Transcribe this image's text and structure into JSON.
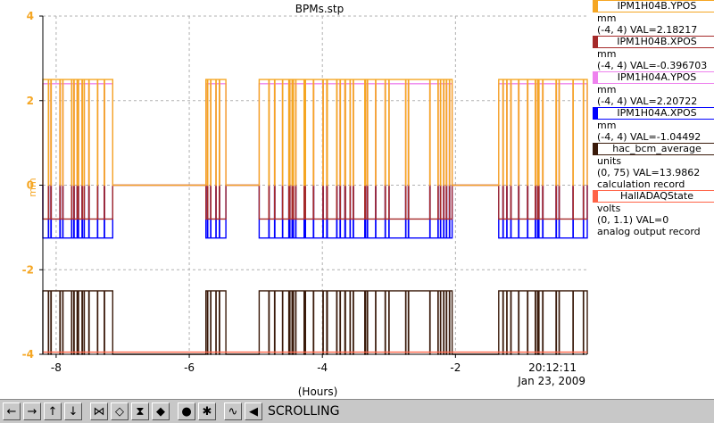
{
  "chart_data": {
    "type": "line",
    "title": "BPMs.stp",
    "xlabel": "(Hours)",
    "ylabel": "mm",
    "xlim": [
      -8.2,
      -0.02
    ],
    "ylim": [
      -4,
      4
    ],
    "x_ticks": [
      -8,
      -6,
      -4,
      -2
    ],
    "x_tick_labels": [
      "-8",
      "-6",
      "-4",
      "-2"
    ],
    "y_ticks": [
      -4,
      -2,
      0,
      2,
      4
    ],
    "y_tick_labels": [
      "-4",
      "-2",
      "0",
      "2",
      "4"
    ],
    "time_label": "20:12:11",
    "date_label": "Jan 23, 2009",
    "grid": true,
    "legend_position": "right",
    "beam_on_intervals": [
      [
        -8.2,
        -7.15
      ],
      [
        -5.75,
        -5.45
      ],
      [
        -4.95,
        -2.05
      ],
      [
        -1.35,
        -0.02
      ]
    ],
    "series": [
      {
        "name": "IPM1H04B.YPOS",
        "color": "#f5a623",
        "units": "mm",
        "range": "(-4, 4)",
        "val": "VAL=2.18217",
        "on_value": 2.5,
        "off_value": 0.0
      },
      {
        "name": "IPM1H04B.XPOS",
        "color": "#a52a2a",
        "units": "mm",
        "range": "(-4, 4)",
        "val": "VAL=-0.396703",
        "on_value": -0.8,
        "off_value": 0.0
      },
      {
        "name": "IPM1H04A.YPOS",
        "color": "#ee82ee",
        "units": "mm",
        "range": "(-4, 4)",
        "val": "VAL=2.20722",
        "on_value": 2.4,
        "off_value": 0.0
      },
      {
        "name": "IPM1H04A.XPOS",
        "color": "#0000ff",
        "units": "mm",
        "range": "(-4, 4)",
        "val": "VAL=-1.04492",
        "on_value": -1.25,
        "off_value": 0.0
      },
      {
        "name": "hac_bcm_average",
        "color": "#3a1a0a",
        "units": "units",
        "range": "(0, 75)",
        "val": "VAL=13.9862",
        "extra": "calculation record",
        "on_value": -2.5,
        "off_value": -4.0
      },
      {
        "name": "HallADAQState",
        "color": "#ff6347",
        "units": "volts",
        "range": "(0, 1.1)",
        "val": "VAL=0",
        "extra": "analog output record",
        "on_value": -3.95,
        "off_value": -3.95
      }
    ]
  },
  "toolbar": {
    "buttons": [
      {
        "name": "left-arrow-icon",
        "glyph": "←"
      },
      {
        "name": "right-arrow-icon",
        "glyph": "→"
      },
      {
        "name": "up-arrow-icon",
        "glyph": "↑"
      },
      {
        "name": "down-arrow-icon",
        "glyph": "↓"
      },
      {
        "name": "zoom-in-x-icon",
        "glyph": "⋈"
      },
      {
        "name": "zoom-out-x-icon",
        "glyph": "◇"
      },
      {
        "name": "zoom-in-y-icon",
        "glyph": "⧗"
      },
      {
        "name": "zoom-out-y-icon",
        "glyph": "◆"
      },
      {
        "name": "record-icon",
        "glyph": "●"
      },
      {
        "name": "config-icon",
        "glyph": "✱"
      },
      {
        "name": "waveform-icon",
        "glyph": "∿"
      },
      {
        "name": "back-to-scroll-icon",
        "glyph": "◀"
      }
    ],
    "status": "SCROLLING"
  }
}
